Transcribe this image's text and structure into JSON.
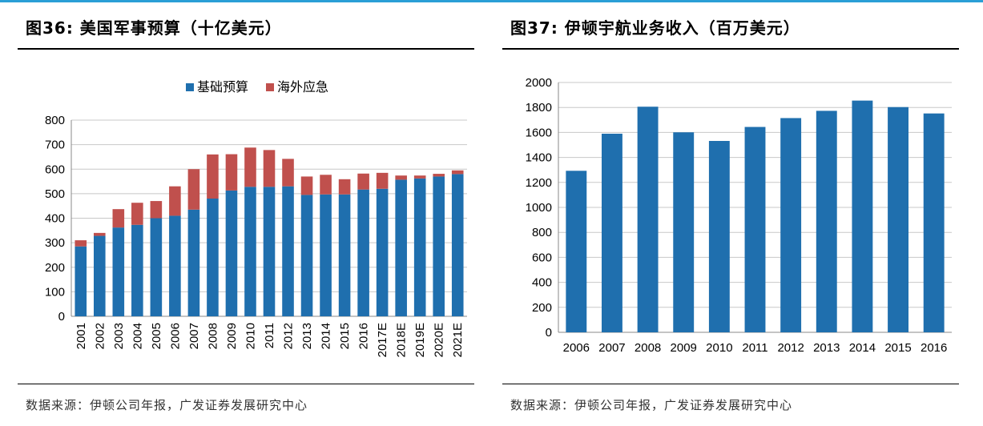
{
  "left": {
    "title": "图36:  美国军事预算（十亿美元）",
    "source": "数据来源：伊顿公司年报，广发证券发展研究中心"
  },
  "right": {
    "title": "图37:    伊顿宇航业务收入（百万美元）",
    "source": "数据来源：伊顿公司年报，广发证券发展研究中心"
  },
  "chart_data": [
    {
      "type": "bar",
      "stacked": true,
      "categories": [
        "2001",
        "2002",
        "2003",
        "2004",
        "2005",
        "2006",
        "2007",
        "2008",
        "2009",
        "2010",
        "2011",
        "2012",
        "2013",
        "2014",
        "2015",
        "2016",
        "2017E",
        "2018E",
        "2019E",
        "2020E",
        "2021E"
      ],
      "series": [
        {
          "name": "基础预算",
          "color": "#1f6fae",
          "values": [
            285,
            328,
            362,
            373,
            400,
            410,
            435,
            480,
            513,
            528,
            528,
            530,
            495,
            497,
            497,
            517,
            520,
            557,
            562,
            570,
            580
          ]
        },
        {
          "name": "海外应急",
          "color": "#c0504d",
          "values": [
            25,
            12,
            75,
            90,
            70,
            120,
            165,
            180,
            148,
            160,
            150,
            112,
            75,
            80,
            62,
            65,
            65,
            17,
            12,
            11,
            15
          ]
        }
      ],
      "ylim": [
        0,
        800
      ],
      "yticks": [
        0,
        100,
        200,
        300,
        400,
        500,
        600,
        700,
        800
      ],
      "grid": true,
      "legend_position": "top"
    },
    {
      "type": "bar",
      "categories": [
        "2006",
        "2007",
        "2008",
        "2009",
        "2010",
        "2011",
        "2012",
        "2013",
        "2014",
        "2015",
        "2016"
      ],
      "series": [
        {
          "color": "#1f6fae",
          "values": [
            1293,
            1590,
            1806,
            1601,
            1532,
            1644,
            1715,
            1773,
            1855,
            1803,
            1752
          ]
        }
      ],
      "ylim": [
        0,
        2000
      ],
      "yticks": [
        0,
        200,
        400,
        600,
        800,
        1000,
        1200,
        1400,
        1600,
        1800,
        2000
      ],
      "grid": true
    }
  ]
}
